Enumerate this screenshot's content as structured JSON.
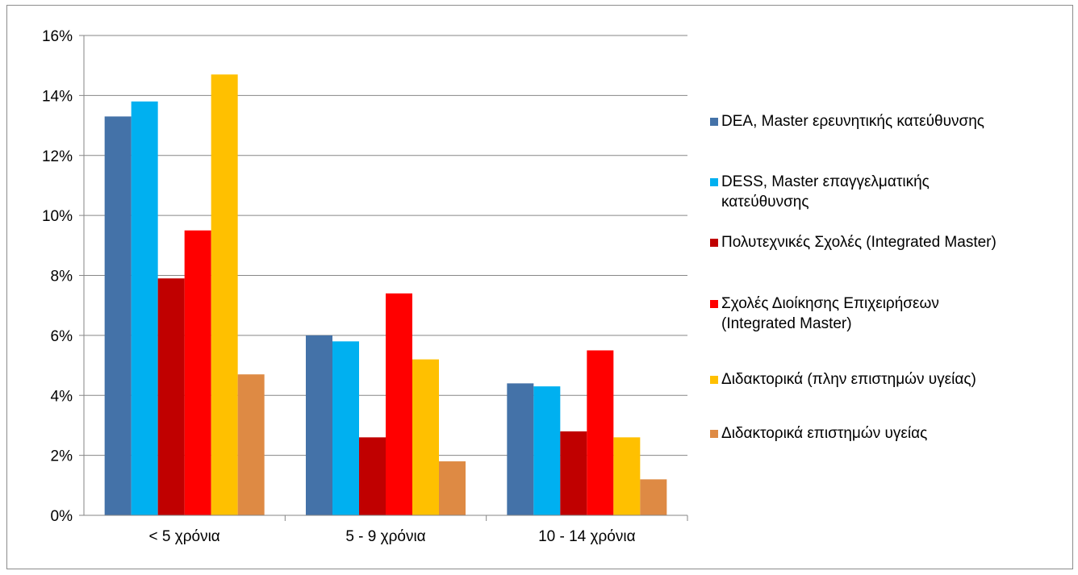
{
  "chart_data": {
    "type": "bar",
    "title": "",
    "xlabel": "",
    "ylabel": "",
    "categories": [
      "< 5 χρόνια",
      "5 - 9 χρόνια",
      "10 - 14 χρόνια"
    ],
    "ylim": [
      0,
      0.16
    ],
    "yticks": [
      0,
      0.02,
      0.04,
      0.06,
      0.08,
      0.1,
      0.12,
      0.14,
      0.16
    ],
    "ytick_labels": [
      "0%",
      "2%",
      "4%",
      "6%",
      "8%",
      "10%",
      "12%",
      "14%",
      "16%"
    ],
    "grid": true,
    "legend_position": "right",
    "series": [
      {
        "name": "DEA, Master ερευνητικής κατεύθυνσης",
        "color": "#4472a8",
        "values": [
          0.133,
          0.06,
          0.044
        ]
      },
      {
        "name": "DESS, Master επαγγελματικής κατεύθυνσης",
        "color": "#00b0f0",
        "values": [
          0.138,
          0.058,
          0.043
        ]
      },
      {
        "name": "Πολυτεχνικές Σχολές (Integrated Master)",
        "color": "#c00000",
        "values": [
          0.079,
          0.026,
          0.028
        ]
      },
      {
        "name": "Σχολές Διοίκησης Επιχειρήσεων (Integrated Master)",
        "color": "#ff0000",
        "values": [
          0.095,
          0.074,
          0.055
        ]
      },
      {
        "name": "Διδακτορικά (πλην επιστημών υγείας)",
        "color": "#ffc000",
        "values": [
          0.147,
          0.052,
          0.026
        ]
      },
      {
        "name": "Διδακτορικά επιστημών υγείας",
        "color": "#de8a44",
        "values": [
          0.047,
          0.018,
          0.012
        ]
      }
    ]
  }
}
